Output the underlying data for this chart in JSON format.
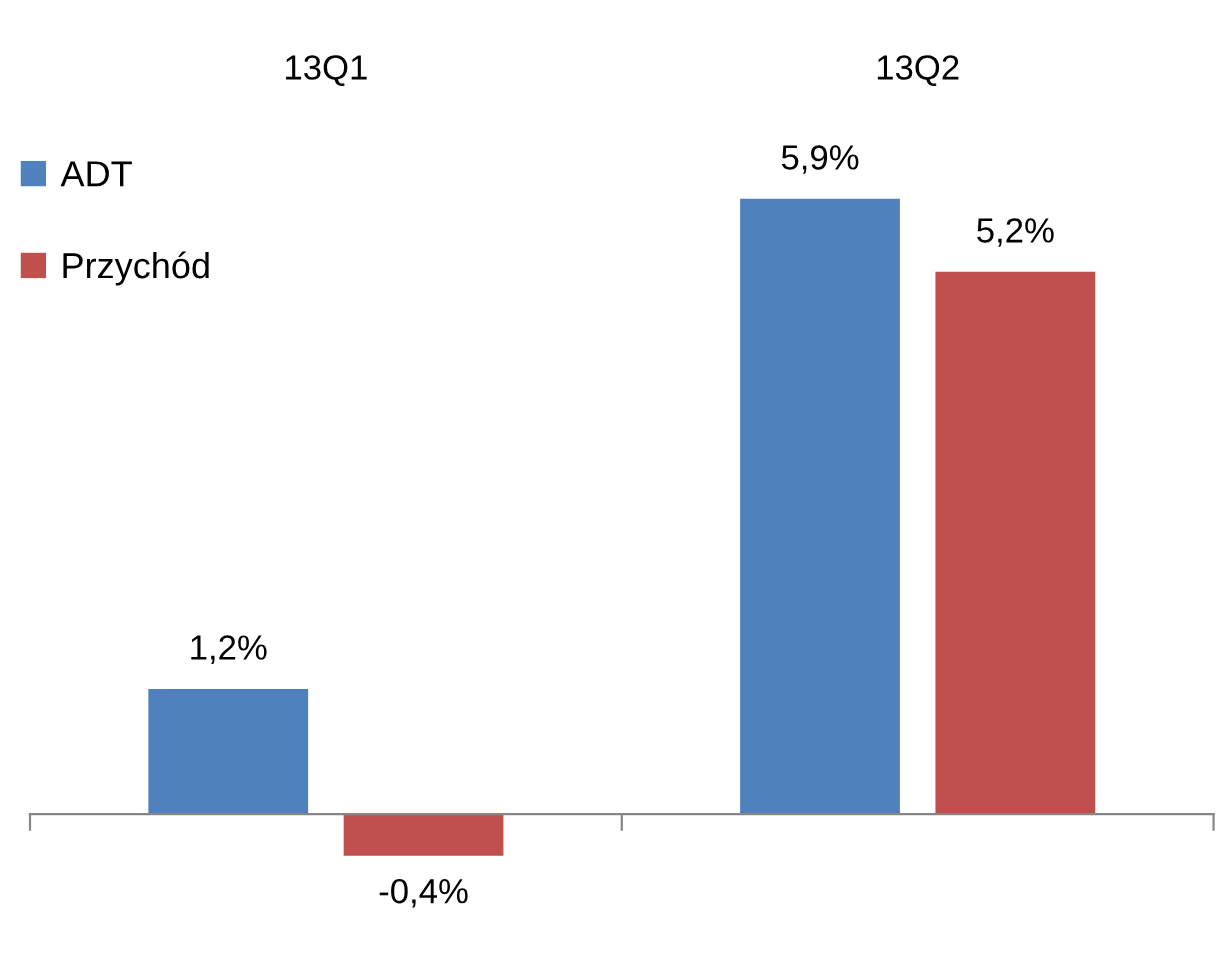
{
  "chart_data": {
    "type": "bar",
    "categories": [
      "13Q1",
      "13Q2"
    ],
    "series": [
      {
        "name": "ADT",
        "color": "#4f81bd",
        "values": [
          1.2,
          5.9
        ],
        "value_labels": [
          "1,2%",
          "5,9%"
        ]
      },
      {
        "name": "Przychód",
        "color": "#c0504d",
        "values": [
          -0.4,
          5.2
        ],
        "value_labels": [
          "-0,4%",
          "5,2%"
        ]
      }
    ],
    "legend": "top left"
  }
}
